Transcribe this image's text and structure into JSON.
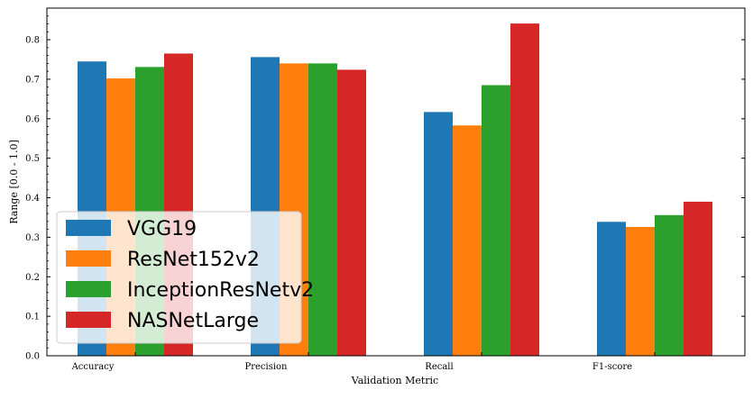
{
  "chart_data": {
    "type": "bar",
    "xlabel": "Validation Metric",
    "ylabel": "Range [0.0 - 1.0]",
    "categories": [
      "Accuracy",
      "Precision",
      "Recall",
      "F1-score"
    ],
    "ylim": [
      0,
      0.88
    ],
    "yticks": [
      "0.0",
      "0.1",
      "0.2",
      "0.3",
      "0.4",
      "0.5",
      "0.6",
      "0.7",
      "0.8"
    ],
    "legend_position": "lower-left",
    "series": [
      {
        "name": "VGG19",
        "color": "#1f77b4",
        "values": [
          0.745,
          0.756,
          0.617,
          0.339
        ]
      },
      {
        "name": "ResNet152v2",
        "color": "#ff7f0e",
        "values": [
          0.702,
          0.74,
          0.583,
          0.326
        ]
      },
      {
        "name": "InceptionResNetv2",
        "color": "#2ca02c",
        "values": [
          0.731,
          0.74,
          0.685,
          0.356
        ]
      },
      {
        "name": "NASNetLarge",
        "color": "#d62728",
        "values": [
          0.765,
          0.724,
          0.841,
          0.39
        ]
      }
    ]
  }
}
